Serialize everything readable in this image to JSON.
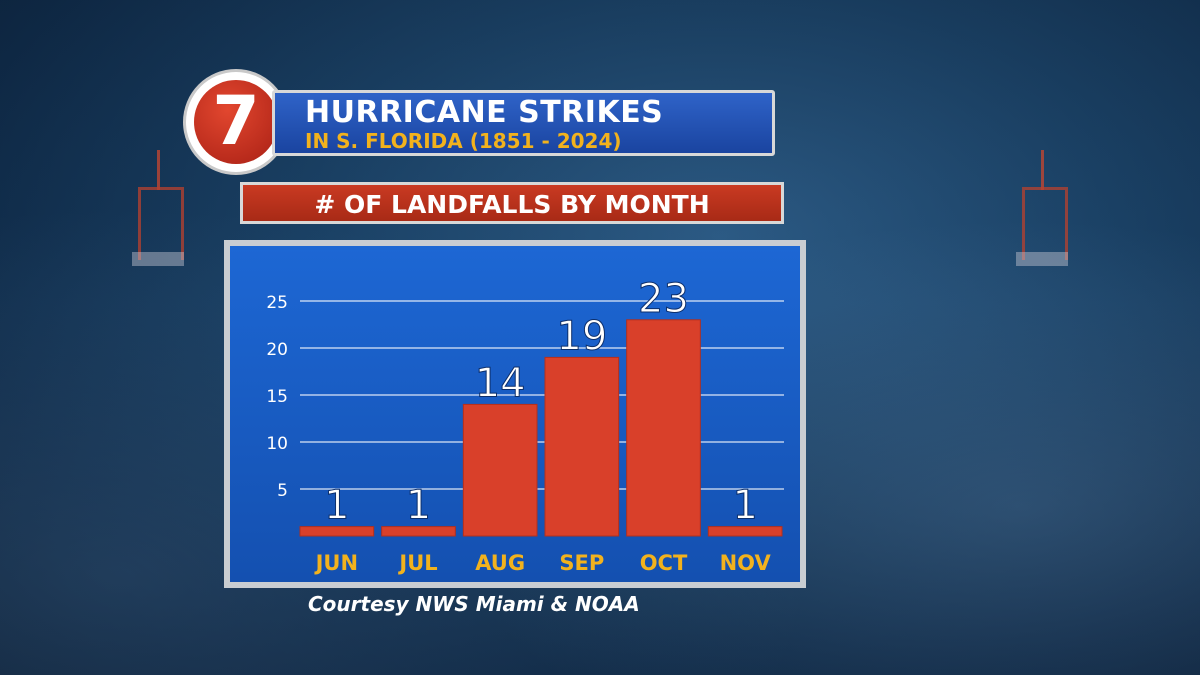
{
  "logo": {
    "text": "7"
  },
  "title": {
    "main": "HURRICANE STRIKES",
    "sub": "IN S. FLORIDA (1851 - 2024)"
  },
  "subtitle": "# OF LANDFALLS BY MONTH",
  "credit": "Courtesy NWS Miami & NOAA",
  "colors": {
    "bar": "#d9402a",
    "month_label": "#f2b21d",
    "panel": "#1a5ec8",
    "title_sub": "#f2b21d"
  },
  "chart_data": {
    "type": "bar",
    "title": "# OF LANDFALLS BY MONTH",
    "categories": [
      "JUN",
      "JUL",
      "AUG",
      "SEP",
      "OCT",
      "NOV"
    ],
    "values": [
      1,
      1,
      14,
      19,
      23,
      1
    ],
    "data_labels": [
      "1",
      "1",
      "14",
      "19",
      "23",
      "1"
    ],
    "yticks": [
      5,
      10,
      15,
      20,
      25
    ],
    "ylim": [
      0,
      25
    ],
    "grid": true,
    "xlabel": "",
    "ylabel": ""
  }
}
